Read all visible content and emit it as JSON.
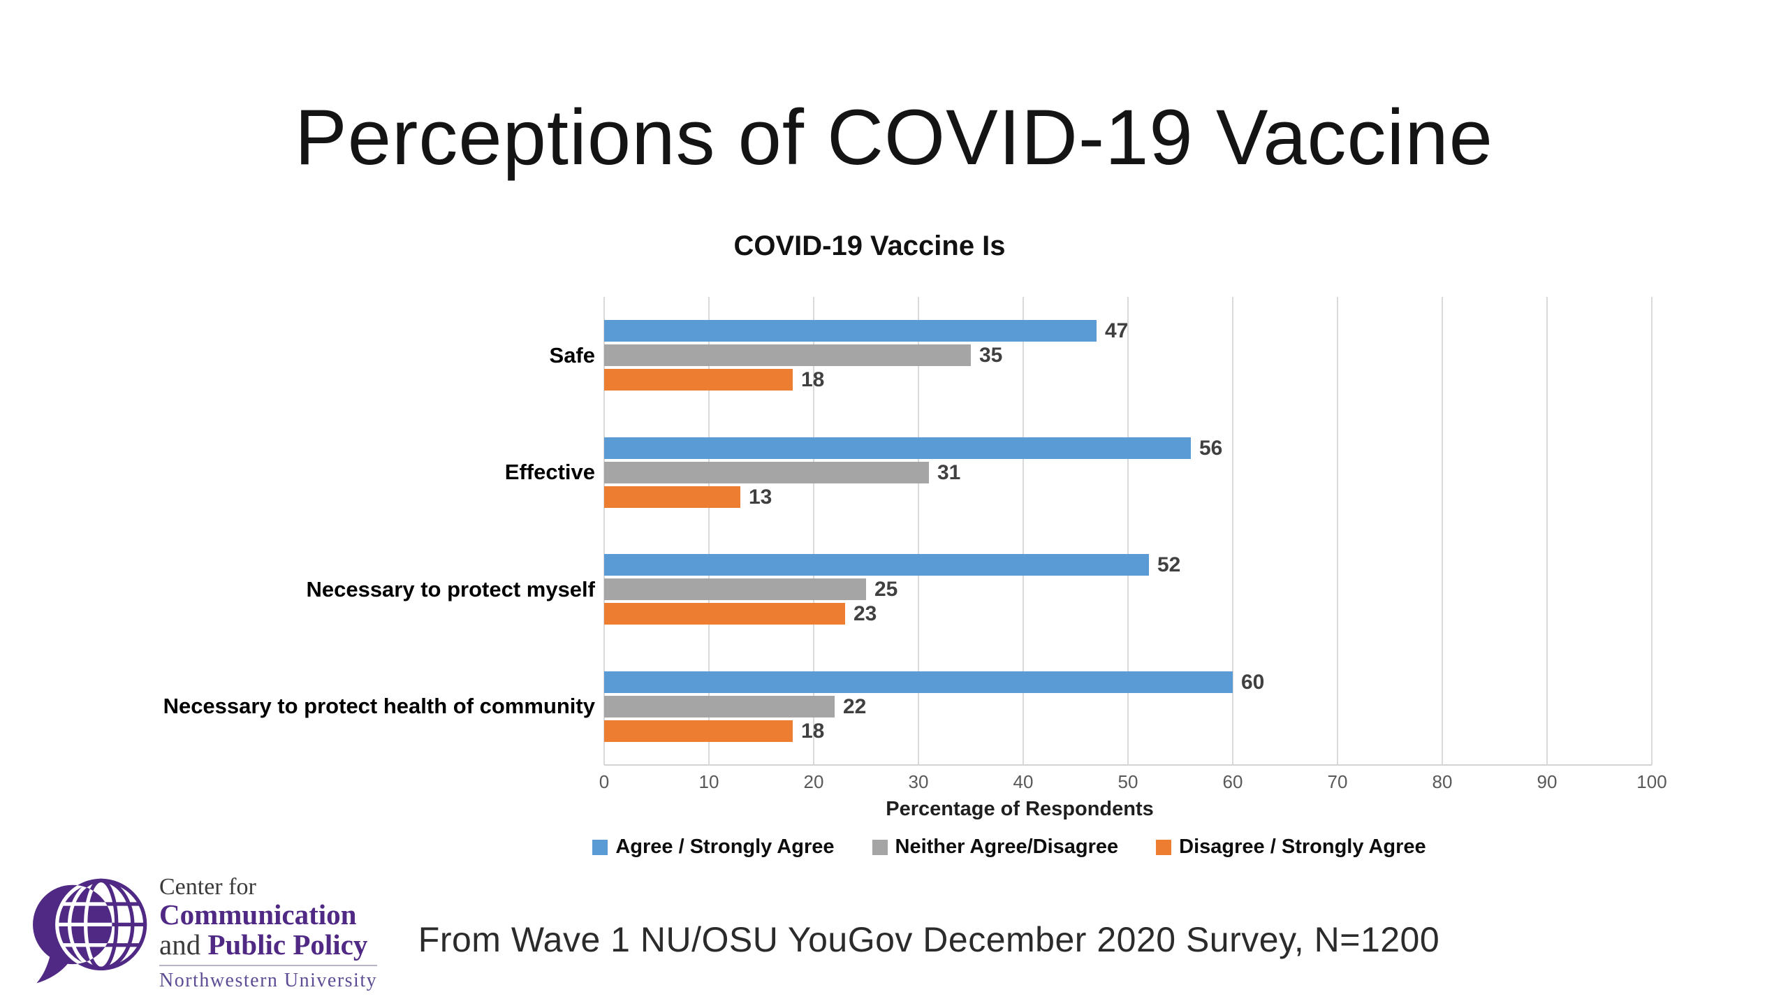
{
  "slide": {
    "title": "Perceptions of COVID-19 Vaccine",
    "caption": "From Wave 1 NU/OSU YouGov December 2020 Survey, N=1200"
  },
  "logo": {
    "line1": "Center for",
    "line2": "Communication",
    "line3_prefix": "and ",
    "line3_main": "Public Policy",
    "line4": "Northwestern University",
    "purple": "#4F2984"
  },
  "chart_data": {
    "type": "bar",
    "orientation": "horizontal",
    "title": "COVID-19 Vaccine Is",
    "categories": [
      "Safe",
      "Effective",
      "Necessary to protect myself",
      "Necessary to protect health of community"
    ],
    "series": [
      {
        "name": "Agree / Strongly Agree",
        "color": "#5B9BD5",
        "values": [
          47,
          56,
          52,
          60
        ]
      },
      {
        "name": "Neither Agree/Disagree",
        "color": "#A5A5A5",
        "values": [
          35,
          31,
          25,
          22
        ]
      },
      {
        "name": "Disagree / Strongly Agree",
        "color": "#ED7D31",
        "values": [
          18,
          13,
          23,
          18
        ]
      }
    ],
    "xlabel": "Percentage of Respondents",
    "xlim": [
      0,
      100
    ],
    "xticks": [
      0,
      10,
      20,
      30,
      40,
      50,
      60,
      70,
      80,
      90,
      100
    ],
    "grid": true,
    "gridline_color": "#D9D9D9",
    "value_label_color": "#404040",
    "legend_position": "bottom"
  }
}
